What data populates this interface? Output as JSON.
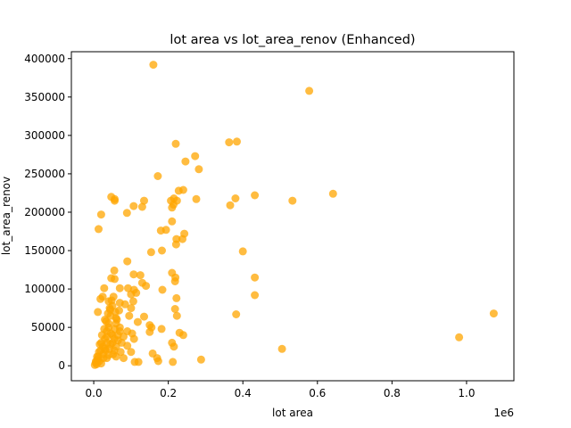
{
  "chart_data": {
    "type": "scatter",
    "title": "lot area vs lot_area_renov (Enhanced)",
    "xlabel": "lot area",
    "ylabel": "lot_area_renov",
    "x_offset_label": "1e6",
    "xlim": [
      -60000,
      1127000
    ],
    "ylim": [
      -19500,
      409000
    ],
    "x_ticks": [
      {
        "value": 0,
        "label": "0.0"
      },
      {
        "value": 200000,
        "label": "0.2"
      },
      {
        "value": 400000,
        "label": "0.4"
      },
      {
        "value": 600000,
        "label": "0.6"
      },
      {
        "value": 800000,
        "label": "0.8"
      },
      {
        "value": 1000000,
        "label": "1.0"
      }
    ],
    "y_ticks": [
      {
        "value": 0,
        "label": "0"
      },
      {
        "value": 50000,
        "label": "50000"
      },
      {
        "value": 100000,
        "label": "100000"
      },
      {
        "value": 150000,
        "label": "150000"
      },
      {
        "value": 200000,
        "label": "200000"
      },
      {
        "value": 250000,
        "label": "250000"
      },
      {
        "value": 300000,
        "label": "300000"
      },
      {
        "value": 350000,
        "label": "350000"
      },
      {
        "value": 400000,
        "label": "400000"
      }
    ],
    "grid": false,
    "point_color": "#ffa500",
    "point_alpha": 0.75,
    "points": [
      [
        160000,
        392000
      ],
      [
        578000,
        358000
      ],
      [
        220000,
        289000
      ],
      [
        363000,
        291000
      ],
      [
        384000,
        292000
      ],
      [
        272000,
        273000
      ],
      [
        246000,
        266000
      ],
      [
        282000,
        256000
      ],
      [
        172000,
        247000
      ],
      [
        240000,
        229000
      ],
      [
        228000,
        228000
      ],
      [
        642000,
        224000
      ],
      [
        432000,
        222000
      ],
      [
        47000,
        220000
      ],
      [
        56000,
        217000
      ],
      [
        56000,
        215000
      ],
      [
        135000,
        215000
      ],
      [
        207000,
        215000
      ],
      [
        215000,
        218000
      ],
      [
        223000,
        215000
      ],
      [
        533000,
        215000
      ],
      [
        380000,
        218000
      ],
      [
        275000,
        217000
      ],
      [
        366000,
        209000
      ],
      [
        107000,
        208000
      ],
      [
        210000,
        206000
      ],
      [
        130000,
        207000
      ],
      [
        214000,
        210000
      ],
      [
        89000,
        199000
      ],
      [
        20000,
        197000
      ],
      [
        210000,
        188000
      ],
      [
        13000,
        178000
      ],
      [
        180000,
        176000
      ],
      [
        194000,
        177000
      ],
      [
        243000,
        172000
      ],
      [
        222000,
        165000
      ],
      [
        238000,
        165000
      ],
      [
        221000,
        158000
      ],
      [
        183000,
        150000
      ],
      [
        400000,
        149000
      ],
      [
        154000,
        148000
      ],
      [
        90000,
        136000
      ],
      [
        55000,
        124000
      ],
      [
        210000,
        121000
      ],
      [
        107000,
        119000
      ],
      [
        125000,
        118000
      ],
      [
        219000,
        115000
      ],
      [
        432000,
        115000
      ],
      [
        47000,
        114000
      ],
      [
        56000,
        113000
      ],
      [
        218000,
        110000
      ],
      [
        130000,
        108000
      ],
      [
        70000,
        101000
      ],
      [
        28000,
        101000
      ],
      [
        92000,
        101000
      ],
      [
        140000,
        104000
      ],
      [
        108000,
        99000
      ],
      [
        184000,
        99000
      ],
      [
        114000,
        95000
      ],
      [
        100000,
        93000
      ],
      [
        24000,
        90000
      ],
      [
        432000,
        92000
      ],
      [
        222000,
        88000
      ],
      [
        18000,
        87000
      ],
      [
        40000,
        84000
      ],
      [
        106000,
        84000
      ],
      [
        70000,
        82000
      ],
      [
        84000,
        80000
      ],
      [
        50000,
        78000
      ],
      [
        100000,
        75000
      ],
      [
        44000,
        73000
      ],
      [
        218000,
        74000
      ],
      [
        11000,
        70000
      ],
      [
        382000,
        67000
      ],
      [
        223000,
        65000
      ],
      [
        1073000,
        68000
      ],
      [
        95000,
        65000
      ],
      [
        60000,
        62000
      ],
      [
        135000,
        64000
      ],
      [
        30000,
        60000
      ],
      [
        118000,
        57000
      ],
      [
        60000,
        55000
      ],
      [
        150000,
        53000
      ],
      [
        155000,
        50000
      ],
      [
        40000,
        50000
      ],
      [
        182000,
        48000
      ],
      [
        70000,
        45000
      ],
      [
        90000,
        45000
      ],
      [
        230000,
        43000
      ],
      [
        240000,
        40000
      ],
      [
        103000,
        42000
      ],
      [
        150000,
        44000
      ],
      [
        50000,
        40000
      ],
      [
        35000,
        38000
      ],
      [
        80000,
        38000
      ],
      [
        980000,
        37000
      ],
      [
        108000,
        35000
      ],
      [
        65000,
        33000
      ],
      [
        210000,
        30000
      ],
      [
        20000,
        30000
      ],
      [
        45000,
        28000
      ],
      [
        90000,
        26000
      ],
      [
        215000,
        25000
      ],
      [
        505000,
        22000
      ],
      [
        30000,
        22000
      ],
      [
        55000,
        20000
      ],
      [
        72000,
        18000
      ],
      [
        100000,
        18000
      ],
      [
        158000,
        16000
      ],
      [
        25000,
        15000
      ],
      [
        40000,
        14000
      ],
      [
        60000,
        12000
      ],
      [
        170000,
        10000
      ],
      [
        80000,
        10000
      ],
      [
        35000,
        10000
      ],
      [
        288000,
        8000
      ],
      [
        173000,
        6000
      ],
      [
        212000,
        5000
      ],
      [
        110000,
        5000
      ],
      [
        120000,
        5000
      ],
      [
        10000,
        8000
      ],
      [
        5000,
        4000
      ],
      [
        15000,
        6000
      ],
      [
        8000,
        2000
      ],
      [
        3000,
        1000
      ],
      [
        20000,
        3000
      ],
      [
        12000,
        12000
      ],
      [
        18000,
        20000
      ],
      [
        25000,
        25000
      ],
      [
        30000,
        35000
      ],
      [
        35000,
        45000
      ],
      [
        40000,
        55000
      ],
      [
        45000,
        65000
      ],
      [
        50000,
        30000
      ],
      [
        55000,
        35000
      ],
      [
        60000,
        25000
      ],
      [
        65000,
        40000
      ],
      [
        70000,
        50000
      ],
      [
        75000,
        30000
      ],
      [
        22000,
        40000
      ],
      [
        28000,
        48000
      ],
      [
        33000,
        58000
      ],
      [
        38000,
        68000
      ],
      [
        43000,
        75000
      ],
      [
        48000,
        85000
      ],
      [
        53000,
        90000
      ],
      [
        58000,
        70000
      ],
      [
        62000,
        60000
      ],
      [
        68000,
        72000
      ],
      [
        32000,
        20000
      ],
      [
        42000,
        22000
      ],
      [
        52000,
        15000
      ],
      [
        36000,
        30000
      ],
      [
        46000,
        42000
      ],
      [
        56000,
        48000
      ],
      [
        26000,
        10000
      ],
      [
        14000,
        18000
      ],
      [
        9000,
        12000
      ],
      [
        6000,
        6000
      ],
      [
        16000,
        28000
      ]
    ]
  }
}
